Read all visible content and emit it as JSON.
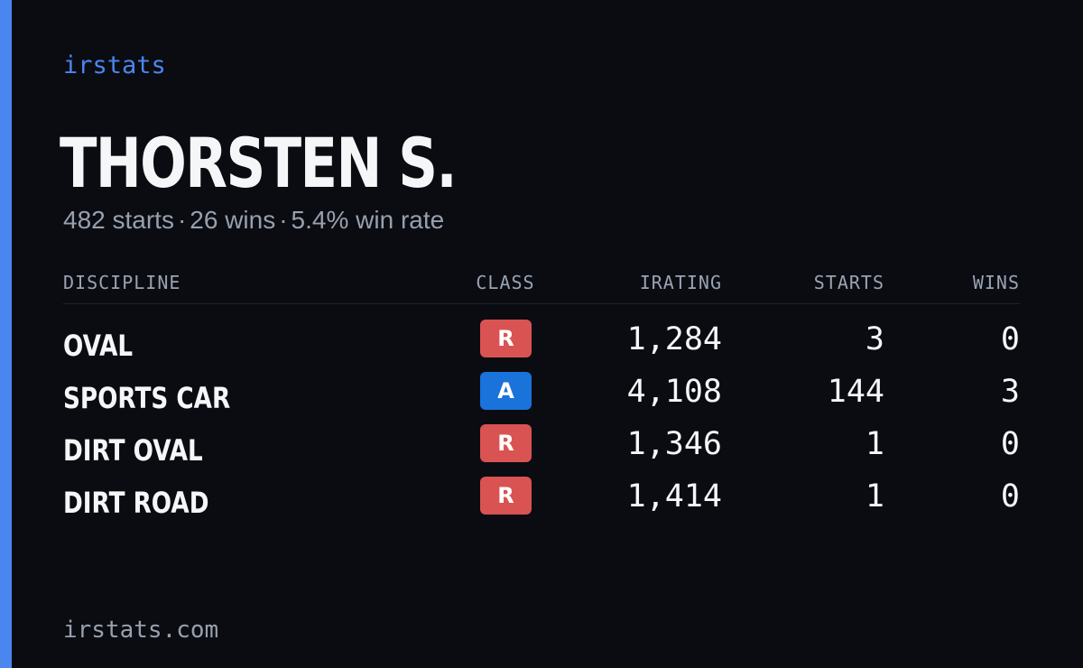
{
  "brand": "irstats",
  "driver": {
    "name": "THORSTEN S.",
    "starts_text": "482 starts",
    "wins_text": "26 wins",
    "win_rate_text": "5.4% win rate",
    "separator": "·"
  },
  "table": {
    "headers": {
      "discipline": "DISCIPLINE",
      "class": "CLASS",
      "irating": "IRATING",
      "starts": "STARTS",
      "wins": "WINS"
    },
    "rows": [
      {
        "discipline": "OVAL",
        "class": "R",
        "class_color": "#d95352",
        "irating": "1,284",
        "starts": "3",
        "wins": "0"
      },
      {
        "discipline": "SPORTS CAR",
        "class": "A",
        "class_color": "#1a72db",
        "irating": "4,108",
        "starts": "144",
        "wins": "3"
      },
      {
        "discipline": "DIRT OVAL",
        "class": "R",
        "class_color": "#d95352",
        "irating": "1,346",
        "starts": "1",
        "wins": "0"
      },
      {
        "discipline": "DIRT ROAD",
        "class": "R",
        "class_color": "#d95352",
        "irating": "1,414",
        "starts": "1",
        "wins": "0"
      }
    ]
  },
  "footer": {
    "url": "irstats.com"
  },
  "colors": {
    "accent": "#4a86f0",
    "background": "#0a0c12"
  }
}
